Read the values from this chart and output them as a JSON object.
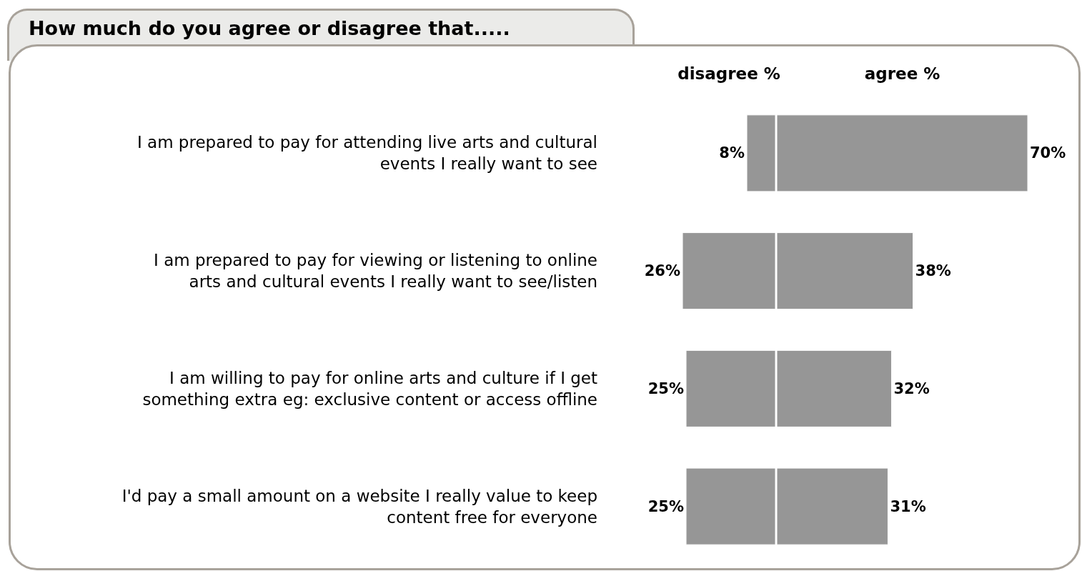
{
  "chart_data": [
    {
      "type": "bar",
      "orientation": "horizontal",
      "title": "How much do you agree or disagree that.....",
      "xlabel": "disagree %",
      "categories": [
        "I am prepared to pay for attending live arts and cultural events I really want to see",
        "I am prepared to pay for viewing or listening to online arts and cultural events I really want to see/listen",
        "I am willing to pay for online arts and culture if I get something extra eg: exclusive content or access offline",
        "I'd pay a small amount on a website I really value to keep content free for everyone"
      ],
      "values": [
        8,
        26,
        25,
        25
      ],
      "value_labels": [
        "8%",
        "26%",
        "25%",
        "25%"
      ],
      "color": "#969696",
      "xlim": [
        26,
        0
      ],
      "tick_labels": "y"
    },
    {
      "type": "bar",
      "orientation": "horizontal",
      "xlabel": "agree %",
      "categories": [
        null,
        null,
        null,
        null
      ],
      "values": [
        70,
        38,
        32,
        31
      ],
      "value_labels": [
        "70%",
        "38%",
        "32%",
        "31%"
      ],
      "color": "#969696",
      "xlim": [
        0,
        70
      ],
      "tick_labels": false
    }
  ]
}
